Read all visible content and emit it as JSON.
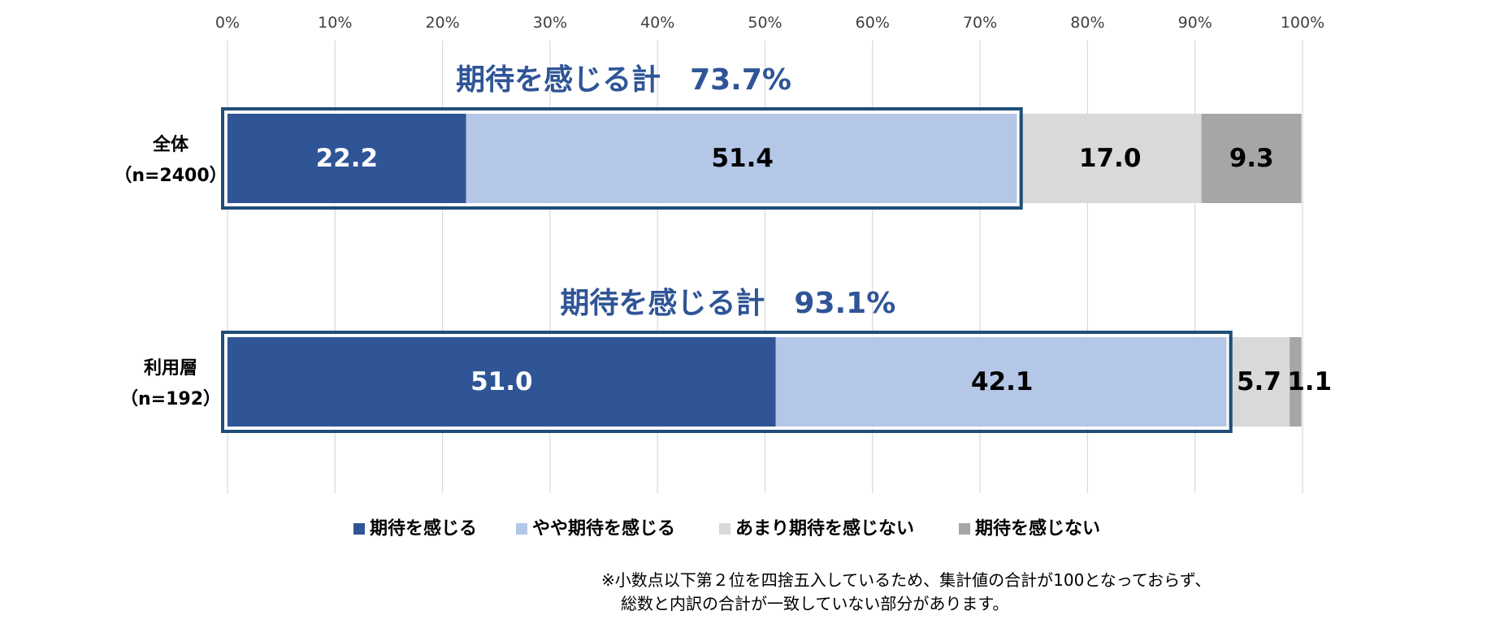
{
  "chart_data": {
    "type": "bar",
    "orientation": "horizontal",
    "stacked": true,
    "xlim": [
      0,
      100
    ],
    "x_ticks": [
      "0%",
      "10%",
      "20%",
      "30%",
      "40%",
      "50%",
      "60%",
      "70%",
      "80%",
      "90%",
      "100%"
    ],
    "grid": true,
    "legend_position": "bottom",
    "categories": [
      {
        "name": "全体",
        "sample": "（n=2400）"
      },
      {
        "name": "利用層",
        "sample": "（n=192）"
      }
    ],
    "series": [
      {
        "name": "期待を感じる",
        "color": "#2F5597",
        "label_color": "#FFFFFF",
        "values": [
          22.2,
          51.0
        ],
        "labels": [
          "22.2",
          "51.0"
        ]
      },
      {
        "name": "やや期待を感じる",
        "color": "#B4C7E7",
        "label_color": "#000000",
        "values": [
          51.4,
          42.1
        ],
        "labels": [
          "51.4",
          "42.1"
        ]
      },
      {
        "name": "あまり期待を感じない",
        "color": "#D9D9D9",
        "label_color": "#000000",
        "values": [
          17.0,
          5.7
        ],
        "labels": [
          "17.0",
          "5.7"
        ]
      },
      {
        "name": "期待を感じない",
        "color": "#A6A6A6",
        "label_color": "#000000",
        "values": [
          9.3,
          1.1
        ],
        "labels": [
          "9.3",
          "1.1"
        ]
      }
    ],
    "summaries": [
      {
        "text": "期待を感じる計　73.7%",
        "value": 73.7
      },
      {
        "text": "期待を感じる計　93.1%",
        "value": 93.1
      }
    ],
    "summary_color": "#2F5597",
    "highlight_box_color": "#1F4E79"
  },
  "note": {
    "line1": "※小数点以下第２位を四捨五入しているため、集計値の合計が100となっておらず、",
    "line2": "総数と内訳の合計が一致していない部分があります。"
  }
}
